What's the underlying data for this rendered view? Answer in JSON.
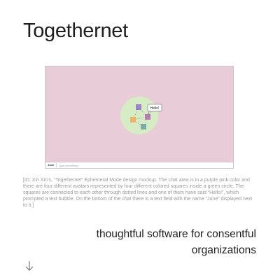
{
  "page": {
    "title": "Togethernet",
    "alt_text": "[ID: Xin Xin’s, “Togethernet” Ephemeral Mode design mockup. The chat area is in a purple pink color and there are four different avatars represented by four different colored squares inside a green circle. The squares are connected to each other through dotted lines and one of them have said “Hello!”, which prompted a text bubble. On the bottom of the chat there is a text field with the name “June” displayed next to it.]",
    "tagline": "thoughtful software for consentful organizations",
    "scroll_icon": "arrow-down-icon"
  },
  "mockup": {
    "chat_background": "#e8ccd8",
    "circle_color": "#d6ecc4",
    "speech_bubble": "Hello!",
    "avatars": [
      {
        "name": "purple-avatar",
        "color": "#9a84c4"
      },
      {
        "name": "magenta-avatar",
        "color": "#b67bb4"
      },
      {
        "name": "orange-avatar",
        "color": "#f0b36a"
      },
      {
        "name": "teal-avatar",
        "color": "#7fa9a6"
      }
    ],
    "text_field": {
      "name": "June",
      "placeholder": "type something..."
    }
  }
}
